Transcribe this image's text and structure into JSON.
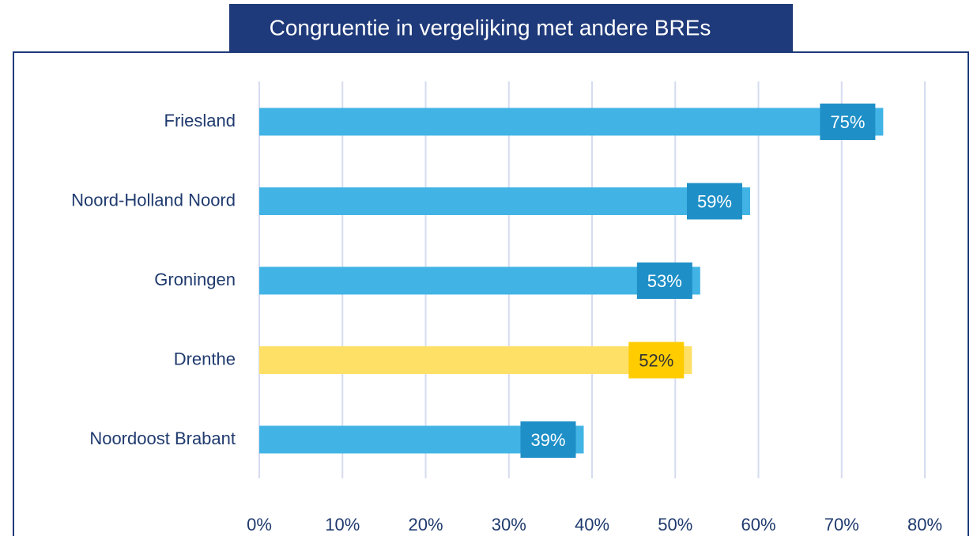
{
  "chart_data": {
    "type": "barh",
    "title": "Congruentie in vergelijking met andere BREs",
    "categories": [
      "Friesland",
      "Noord-Holland Noord",
      "Groningen",
      "Drenthe",
      "Noordoost Brabant"
    ],
    "values": [
      75,
      59,
      53,
      52,
      39
    ],
    "value_labels": [
      "75%",
      "59%",
      "53%",
      "52%",
      "39%"
    ],
    "colors": [
      "#41b4e5",
      "#41b4e5",
      "#41b4e5",
      "#ffe066",
      "#41b4e5"
    ],
    "label_colors": [
      "#1e8fc7",
      "#1e8fc7",
      "#1e8fc7",
      "#ffcc00",
      "#1e8fc7"
    ],
    "xlim": [
      0,
      80
    ],
    "xticks": [
      {
        "value": 0,
        "label": "0%"
      },
      {
        "value": 10,
        "label": "10%"
      },
      {
        "value": 20,
        "label": "20%"
      },
      {
        "value": 30,
        "label": "30%"
      },
      {
        "value": 40,
        "label": "40%"
      },
      {
        "value": 50,
        "label": "50%"
      },
      {
        "value": 60,
        "label": "60%"
      },
      {
        "value": 70,
        "label": "70%"
      },
      {
        "value": 80,
        "label": "80%"
      }
    ],
    "grid": true
  }
}
